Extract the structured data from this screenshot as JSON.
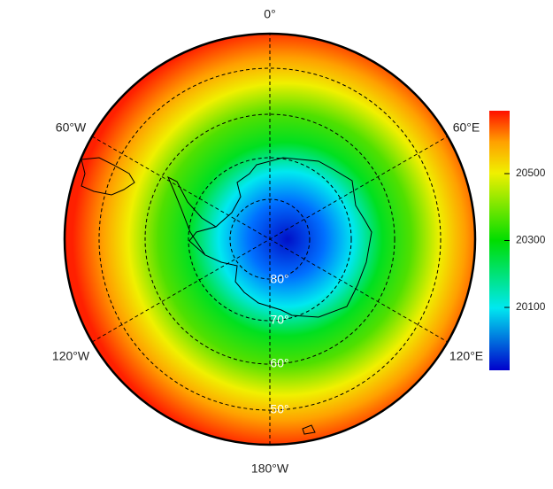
{
  "map": {
    "longitude_labels": [
      "0°",
      "60°E",
      "120°E",
      "180°W",
      "120°W",
      "60°W"
    ],
    "latitude_labels": [
      "80°",
      "70°",
      "60°",
      "50°"
    ]
  },
  "colorbar": {
    "lim": [
      19912,
      20688
    ],
    "ticks": [
      20100,
      20300,
      20500
    ]
  }
}
